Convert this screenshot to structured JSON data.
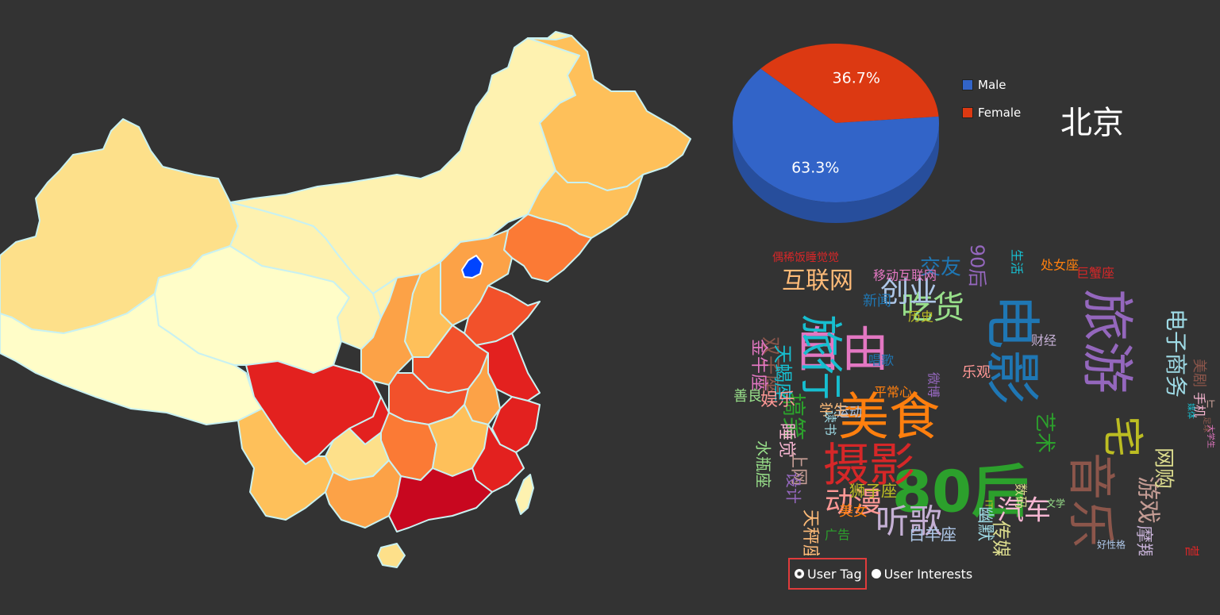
{
  "colors": {
    "background": "#333333",
    "male": "#3264c8",
    "female": "#dc3912",
    "map_border": "#c9f1f1",
    "selected_region": "#0044ff",
    "selected_outline": "#e03b3b"
  },
  "map": {
    "selected_region": "北京",
    "color_scale": [
      "#fffdc8",
      "#fdf0a8",
      "#fde08a",
      "#fec05a",
      "#fca247",
      "#fb7a35",
      "#f2512b",
      "#e3211f",
      "#c8071f"
    ]
  },
  "selected_city": "北京",
  "chart_data": {
    "type": "pie",
    "title": "",
    "categories": [
      "Male",
      "Female"
    ],
    "values": [
      63.3,
      36.7
    ],
    "labels": [
      "63.3%",
      "36.7%"
    ],
    "colors": [
      "#3264c8",
      "#dc3912"
    ],
    "legend": "right",
    "is3D": true
  },
  "legend": {
    "male_label": "Male",
    "female_label": "Female"
  },
  "wordcloud": {
    "words": [
      "80后",
      "电影",
      "旅游",
      "美食",
      "摄影",
      "音乐",
      "自由",
      "旅行",
      "宅",
      "吃货",
      "创业",
      "互联网",
      "听歌",
      "动漫",
      "汽车",
      "游戏",
      "网购",
      "电子商务",
      "搞笑",
      "交友",
      "90后",
      "处女座",
      "巨蟹座",
      "双子座",
      "金牛座",
      "天蝎座",
      "狮子座",
      "水瓶座",
      "白羊座",
      "天秤座",
      "摩羯座",
      "娱乐",
      "睡觉",
      "上网",
      "传媒",
      "幽默",
      "艺术",
      "新闻",
      "设计",
      "美女",
      "营销",
      "美剧",
      "移动互联网",
      "生活",
      "历史",
      "善良",
      "运动",
      "学生",
      "财经",
      "乐观",
      "手机",
      "IT",
      "数码",
      "读书",
      "广告",
      "唱歌",
      "微博",
      "平常心",
      "偶稀饭睡觉觉",
      "足球",
      "大学生",
      "媒体",
      "IT",
      "文学",
      "好性格"
    ]
  },
  "controls": {
    "option_tag": "User Tag",
    "option_interests": "User Interests",
    "selected": "User Tag"
  }
}
